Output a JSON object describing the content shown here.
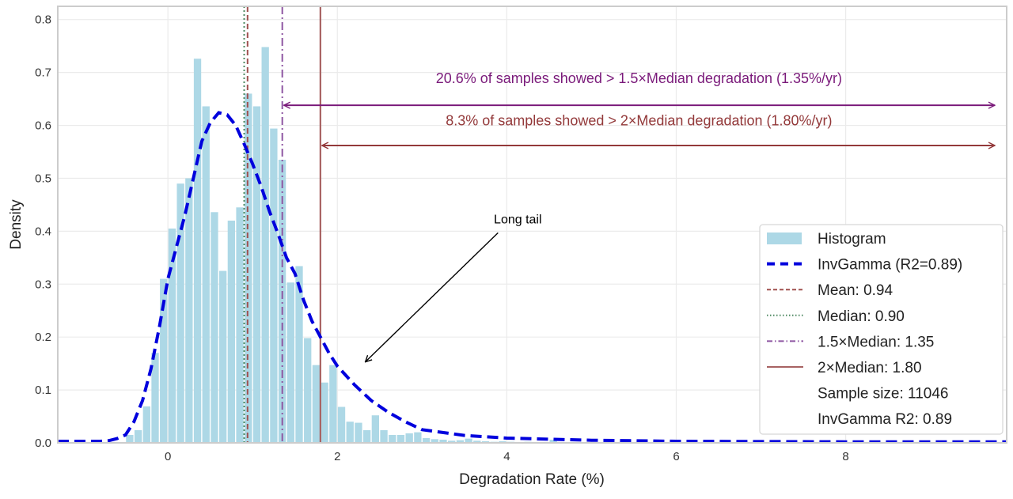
{
  "chart_data": {
    "type": "bar",
    "title": "",
    "xlabel": "Degradation Rate (%)",
    "ylabel": "Density",
    "xlim": [
      -1.3,
      9.9
    ],
    "ylim": [
      0,
      0.825
    ],
    "x_ticks": [
      0,
      2,
      4,
      6,
      8
    ],
    "y_ticks": [
      "0.0",
      "0.1",
      "0.2",
      "0.3",
      "0.4",
      "0.5",
      "0.6",
      "0.7",
      "0.8"
    ],
    "grid": true,
    "legend_placement": "lower-right",
    "histogram": {
      "name": "Histogram",
      "color": "#add8e6",
      "bin_width": 0.1,
      "bin_centers": [
        -0.45,
        -0.35,
        -0.25,
        -0.15,
        -0.05,
        0.05,
        0.15,
        0.25,
        0.35,
        0.45,
        0.55,
        0.65,
        0.75,
        0.85,
        0.95,
        1.05,
        1.15,
        1.25,
        1.35,
        1.45,
        1.55,
        1.65,
        1.75,
        1.85,
        1.95,
        2.05,
        2.15,
        2.25,
        2.35,
        2.45,
        2.55,
        2.65,
        2.75,
        2.85,
        2.95,
        3.05,
        3.15,
        3.25,
        3.35,
        3.45,
        3.55,
        3.65,
        3.75,
        3.85,
        3.95,
        4.05,
        4.15,
        4.25,
        4.35,
        4.45,
        4.55,
        4.65
      ],
      "density": [
        0.015,
        0.024,
        0.069,
        0.17,
        0.31,
        0.405,
        0.49,
        0.5,
        0.726,
        0.636,
        0.436,
        0.325,
        0.42,
        0.445,
        0.66,
        0.636,
        0.748,
        0.594,
        0.535,
        0.303,
        0.334,
        0.198,
        0.147,
        0.114,
        0.147,
        0.068,
        0.04,
        0.038,
        0.024,
        0.052,
        0.024,
        0.015,
        0.015,
        0.018,
        0.02,
        0.009,
        0.007,
        0.006,
        0.004,
        0.005,
        0.008,
        0.004,
        0.003,
        0.002,
        0.003,
        0.002,
        0.001,
        0.002,
        0.001,
        0.001,
        0.006,
        0.001
      ]
    },
    "fit_curve": {
      "name": "InvGamma (R2=0.89)",
      "color": "#0000dd",
      "x": [
        -1.3,
        -0.8,
        -0.7,
        -0.6,
        -0.5,
        -0.4,
        -0.3,
        -0.2,
        -0.1,
        0,
        0.1,
        0.2,
        0.3,
        0.4,
        0.5,
        0.6,
        0.7,
        0.8,
        0.9,
        1.0,
        1.1,
        1.2,
        1.3,
        1.4,
        1.5,
        1.6,
        1.7,
        1.8,
        1.9,
        2.0,
        2.2,
        2.4,
        2.6,
        2.8,
        3.0,
        3.5,
        4.0,
        5.0,
        6.0,
        8.0,
        9.9
      ],
      "y": [
        0.003,
        0.003,
        0.004,
        0.008,
        0.015,
        0.04,
        0.08,
        0.14,
        0.22,
        0.31,
        0.37,
        0.43,
        0.5,
        0.57,
        0.605,
        0.624,
        0.62,
        0.6,
        0.565,
        0.527,
        0.485,
        0.437,
        0.395,
        0.35,
        0.32,
        0.27,
        0.23,
        0.2,
        0.17,
        0.145,
        0.11,
        0.08,
        0.058,
        0.04,
        0.025,
        0.014,
        0.009,
        0.005,
        0.003,
        0.002,
        0.002
      ]
    },
    "vlines": [
      {
        "name": "Mean: 0.94",
        "x": 0.94,
        "color": "#a0504f",
        "style": "dashed"
      },
      {
        "name": "Median: 0.90",
        "x": 0.9,
        "color": "#4f8a62",
        "style": "dotted"
      },
      {
        "name": "1.5×Median: 1.35",
        "x": 1.35,
        "color": "#8e56a2",
        "style": "dashdot"
      },
      {
        "name": "2×Median: 1.80",
        "x": 1.8,
        "color": "#a86262",
        "style": "solid"
      }
    ],
    "legend_extra": [
      "Sample size: 11046",
      "InvGamma R2: 0.89"
    ],
    "annotations": [
      {
        "text": "20.6% of samples showed > 1.5×Median degradation (1.35%/yr)",
        "color": "#7a1a7a",
        "arrow_from": 1.35,
        "arrow_to": 9.76,
        "y": 0.638,
        "text_x": 5.56,
        "text_y": 0.68
      },
      {
        "text": "8.3% of samples showed > 2×Median degradation (1.80%/yr)",
        "color": "#93393a",
        "arrow_from": 1.8,
        "arrow_to": 9.76,
        "y": 0.562,
        "text_x": 5.56,
        "text_y": 0.6
      },
      {
        "text": "Long tail",
        "color": "#000000",
        "text_x": 4.13,
        "text_y": 0.415,
        "arrow_end_x": 2.33,
        "arrow_end_y": 0.153
      }
    ]
  }
}
